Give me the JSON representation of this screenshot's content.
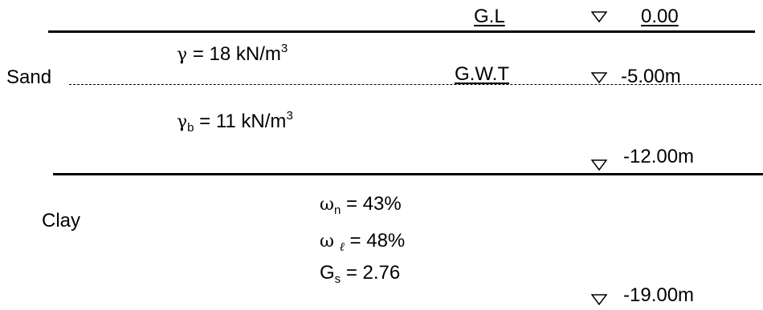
{
  "ground": {
    "gl_label": "G.L",
    "gl_elev": "0.00",
    "gwt_label": "G.W.T",
    "gwt_elev": "-5.00m",
    "clay_top_elev": "-12.00m",
    "clay_bottom_elev": "-19.00m"
  },
  "sand": {
    "label": "Sand",
    "gamma_symbol": "γ",
    "gamma_rest": " = 18 kN/m",
    "gamma_exp": "3",
    "gammab_symbol": "γ",
    "gammab_sub": "b",
    "gammab_rest": " = 11 kN/m",
    "gammab_exp": "3"
  },
  "clay": {
    "label": "Clay",
    "wn_symbol": "ω",
    "wn_sub": "n",
    "wn_rest": " = 43%",
    "wl_symbol": "ω",
    "wl_sub": "ℓ",
    "wl_rest": " = 48%",
    "gs_symbol": "G",
    "gs_sub": "s",
    "gs_rest": " = 2.76"
  }
}
